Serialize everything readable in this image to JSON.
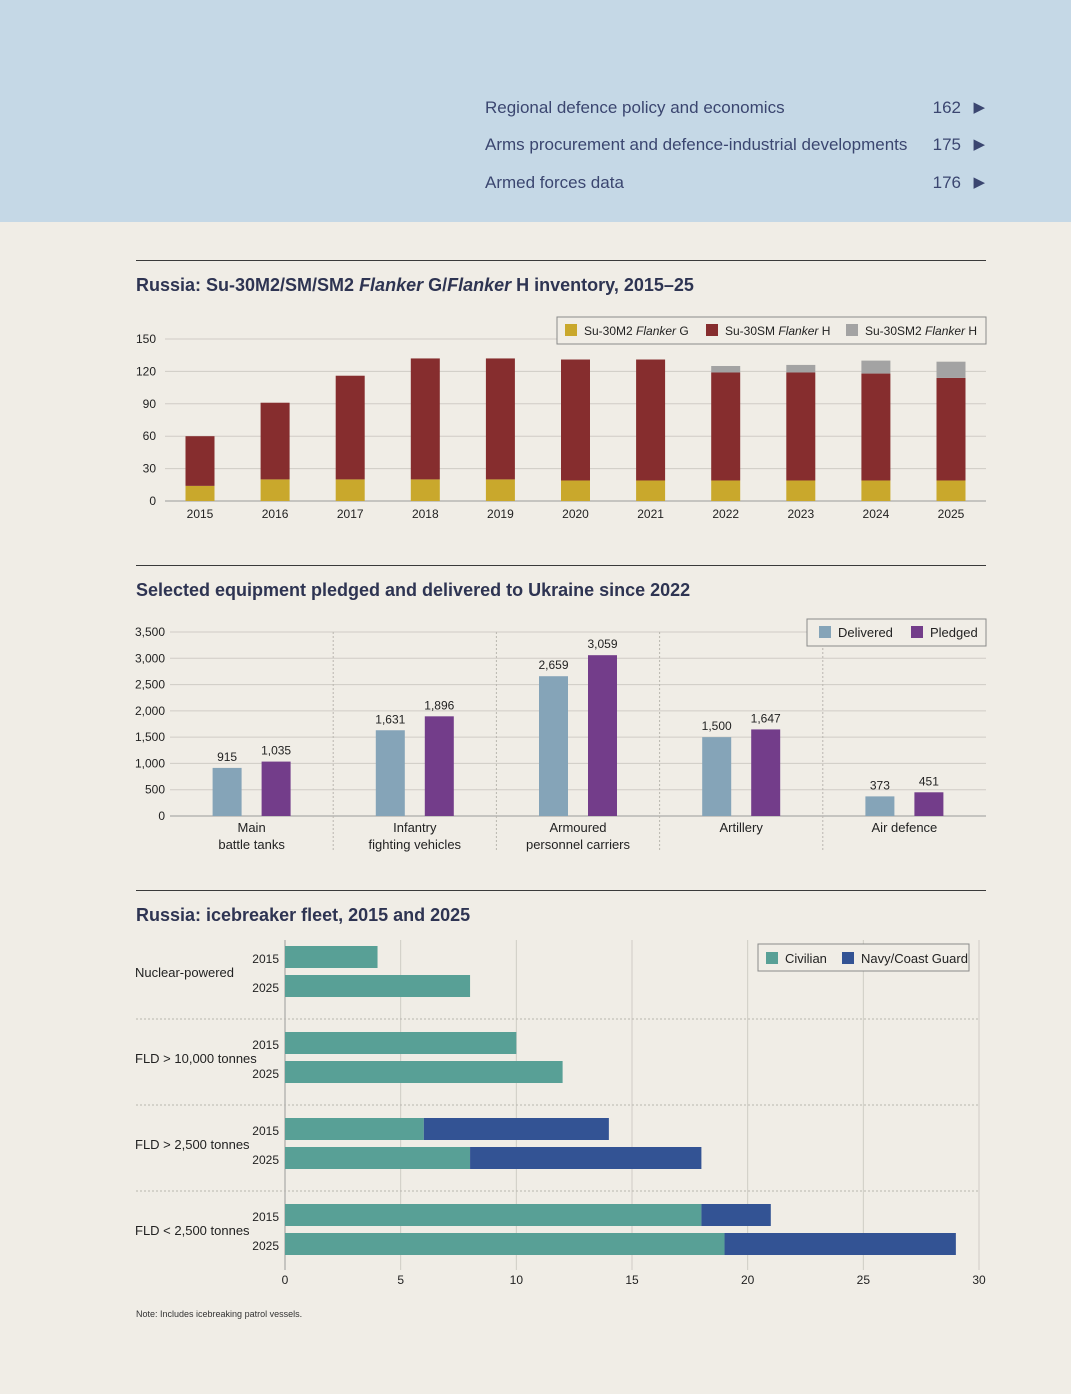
{
  "toc": [
    {
      "label": "Regional defence policy and economics",
      "page": "162"
    },
    {
      "label": "Arms procurement and defence-industrial developments",
      "page": "175"
    },
    {
      "label": "Armed forces data",
      "page": "176"
    }
  ],
  "toc_arrow": "▶",
  "chart1": {
    "title_parts": [
      "Russia: Su-30M2/SM/SM2 ",
      "Flanker",
      " G/",
      "Flanker",
      " H inventory, 2015–25"
    ],
    "legend": [
      {
        "prefix": "Su-30M2 ",
        "italic": "Flanker",
        "suffix": " G"
      },
      {
        "prefix": "Su-30SM ",
        "italic": "Flanker",
        "suffix": " H"
      },
      {
        "prefix": "Su-30SM2 ",
        "italic": "Flanker",
        "suffix": " H"
      }
    ]
  },
  "chart2": {
    "title": "Selected equipment pledged and delivered to Ukraine since 2022"
  },
  "chart3": {
    "title": "Russia: icebreaker fleet, 2015 and 2025"
  },
  "note": "Note: Includes icebreaking patrol vessels.",
  "chart_data": [
    {
      "type": "bar",
      "stacked": true,
      "categories": [
        "2015",
        "2016",
        "2017",
        "2018",
        "2019",
        "2020",
        "2021",
        "2022",
        "2023",
        "2024",
        "2025"
      ],
      "series": [
        {
          "name": "Su-30M2 Flanker G",
          "color": "#c9a82c",
          "values": [
            14,
            20,
            20,
            20,
            20,
            19,
            19,
            19,
            19,
            19,
            19
          ]
        },
        {
          "name": "Su-30SM Flanker H",
          "color": "#862d2e",
          "values": [
            46,
            71,
            96,
            112,
            112,
            112,
            112,
            100,
            100,
            99,
            95
          ]
        },
        {
          "name": "Su-30SM2 Flanker H",
          "color": "#a3a3a3",
          "values": [
            0,
            0,
            0,
            0,
            0,
            0,
            0,
            6,
            7,
            12,
            15
          ]
        }
      ],
      "yticks": [
        0,
        30,
        60,
        90,
        120,
        150
      ],
      "ylim": [
        0,
        150
      ],
      "grid": true,
      "legend_position": "top-right"
    },
    {
      "type": "bar",
      "categories": [
        [
          "Main",
          "battle tanks"
        ],
        [
          "Infantry",
          "fighting vehicles"
        ],
        [
          "Armoured",
          "personnel carriers"
        ],
        [
          "Artillery"
        ],
        [
          "Air defence"
        ]
      ],
      "series": [
        {
          "name": "Delivered",
          "color": "#85a4b8",
          "values": [
            915,
            1631,
            2659,
            1500,
            373
          ],
          "labels": [
            "915",
            "1,631",
            "2,659",
            "1,500",
            "373"
          ]
        },
        {
          "name": "Pledged",
          "color": "#733d8a",
          "values": [
            1035,
            1896,
            3059,
            1647,
            451
          ],
          "labels": [
            "1,035",
            "1,896",
            "3,059",
            "1,647",
            "451"
          ]
        }
      ],
      "yticks": [
        0,
        500,
        1000,
        1500,
        2000,
        2500,
        3000,
        3500
      ],
      "ytick_labels": [
        "0",
        "500",
        "1,000",
        "1,500",
        "2,000",
        "2,500",
        "3,000",
        "3,500"
      ],
      "ylim": [
        0,
        3500
      ],
      "grid": true,
      "legend_position": "top-right"
    },
    {
      "type": "bar",
      "orientation": "horizontal",
      "stacked": true,
      "groups": [
        "Nuclear-powered",
        "FLD > 10,000 tonnes",
        "FLD > 2,500 tonnes",
        "FLD < 2,500 tonnes"
      ],
      "years": [
        "2015",
        "2025"
      ],
      "series": [
        {
          "name": "Civilian",
          "color": "#58a096",
          "values": [
            [
              4,
              8
            ],
            [
              10,
              12
            ],
            [
              6,
              8
            ],
            [
              18,
              19
            ]
          ]
        },
        {
          "name": "Navy/Coast Guard",
          "color": "#335394",
          "values": [
            [
              0,
              0
            ],
            [
              0,
              0
            ],
            [
              8,
              10
            ],
            [
              3,
              10
            ]
          ]
        }
      ],
      "xticks": [
        0,
        5,
        10,
        15,
        20,
        25,
        30
      ],
      "xlim": [
        0,
        30
      ],
      "grid": true,
      "legend_position": "top-right"
    }
  ]
}
